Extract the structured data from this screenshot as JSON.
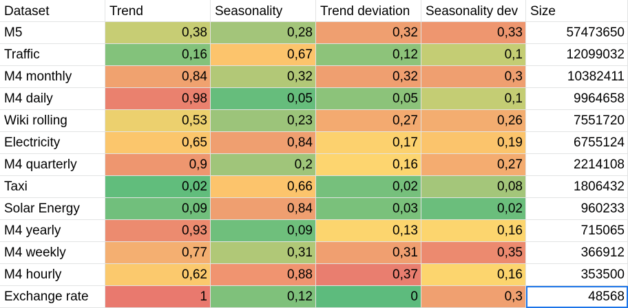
{
  "columns": [
    "Dataset",
    "Trend",
    "Seasonality",
    "Trend deviation",
    "Seasonality dev",
    "Size"
  ],
  "rows": [
    {
      "cells": [
        "M5",
        "0,38",
        "0,28",
        "0,32",
        "0,33",
        "57473650"
      ],
      "colors": [
        "#ffffff",
        "#c7cd74",
        "#a3c57a",
        "#ef9f70",
        "#ee966f",
        "#ffffff"
      ]
    },
    {
      "cells": [
        "Traffic",
        "0,16",
        "0,67",
        "0,12",
        "0,1",
        "12099032"
      ],
      "colors": [
        "#ffffff",
        "#83c27b",
        "#fcc46c",
        "#8dc37a",
        "#c4cd74",
        "#ffffff"
      ]
    },
    {
      "cells": [
        "M4 monthly",
        "0,84",
        "0,32",
        "0,32",
        "0,3",
        "10382411"
      ],
      "colors": [
        "#ffffff",
        "#f0a26f",
        "#b2c877",
        "#ef9f70",
        "#ef9f70",
        "#ffffff"
      ]
    },
    {
      "cells": [
        "M4 daily",
        "0,98",
        "0,05",
        "0,05",
        "0,1",
        "9964658"
      ],
      "colors": [
        "#ffffff",
        "#ea816e",
        "#66bd7c",
        "#8cc37a",
        "#c4cd74",
        "#ffffff"
      ]
    },
    {
      "cells": [
        "Wiki rolling",
        "0,53",
        "0,23",
        "0,27",
        "0,26",
        "7551720"
      ],
      "colors": [
        "#ffffff",
        "#ecd06e",
        "#9cc47a",
        "#f3aa70",
        "#f3ad70",
        "#ffffff"
      ]
    },
    {
      "cells": [
        "Electricity",
        "0,65",
        "0,84",
        "0,17",
        "0,19",
        "6755124"
      ],
      "colors": [
        "#ffffff",
        "#fbc66c",
        "#ef9f70",
        "#fcd16e",
        "#fbc46c",
        "#ffffff"
      ]
    },
    {
      "cells": [
        "M4 quarterly",
        "0,9",
        "0,2",
        "0,16",
        "0,27",
        "2214108"
      ],
      "colors": [
        "#ffffff",
        "#ee966f",
        "#a0c57a",
        "#fdd56f",
        "#f4ac70",
        "#ffffff"
      ]
    },
    {
      "cells": [
        "Taxi",
        "0,02",
        "0,66",
        "0,02",
        "0,08",
        "1806432"
      ],
      "colors": [
        "#ffffff",
        "#61bd7c",
        "#fcc46c",
        "#76c07c",
        "#a4c67a",
        "#ffffff"
      ]
    },
    {
      "cells": [
        "Solar Energy",
        "0,09",
        "0,84",
        "0,03",
        "0,02",
        "960233"
      ],
      "colors": [
        "#ffffff",
        "#71bf7c",
        "#ef9f70",
        "#7ac17b",
        "#6bbe7c",
        "#ffffff"
      ]
    },
    {
      "cells": [
        "M4 yearly",
        "0,93",
        "0,09",
        "0,13",
        "0,16",
        "715065"
      ],
      "colors": [
        "#ffffff",
        "#ec8b6f",
        "#6fbf7c",
        "#fcd56e",
        "#fcd56e",
        "#ffffff"
      ]
    },
    {
      "cells": [
        "M4 weekly",
        "0,77",
        "0,31",
        "0,31",
        "0,35",
        "366912"
      ],
      "colors": [
        "#ffffff",
        "#f4af71",
        "#b0c877",
        "#f09f70",
        "#ec8a6f",
        "#ffffff"
      ]
    },
    {
      "cells": [
        "M4 hourly",
        "0,62",
        "0,88",
        "0,37",
        "0,16",
        "353500"
      ],
      "colors": [
        "#ffffff",
        "#fbc96d",
        "#f09470",
        "#e97e6f",
        "#fcd56e",
        "#ffffff"
      ]
    },
    {
      "cells": [
        "Exchange rate",
        "1",
        "0,12",
        "0",
        "0,3",
        "48568"
      ],
      "colors": [
        "#ffffff",
        "#e9796e",
        "#7fc17b",
        "#5dbb7d",
        "#f0a070",
        "#ffffff"
      ]
    }
  ],
  "selected_cell": {
    "row": 12,
    "col": 5
  }
}
